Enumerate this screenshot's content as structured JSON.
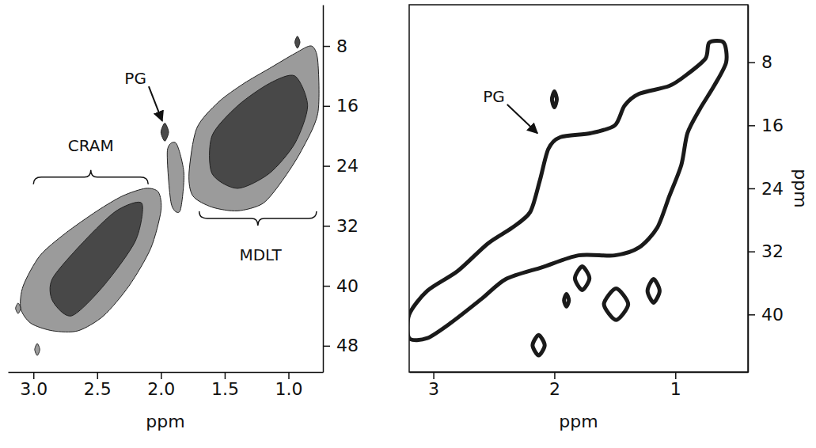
{
  "chart_data": [
    {
      "type": "contourf",
      "x_label": "ppm",
      "xlim": [
        3.2,
        0.73
      ],
      "ylim": [
        2.5,
        51.5
      ],
      "xticks": [
        {
          "value": 3,
          "label": "3.0"
        },
        {
          "value": 2.5,
          "label": "2.5"
        },
        {
          "value": 2,
          "label": "2.0"
        },
        {
          "value": 1.5,
          "label": "1.5"
        },
        {
          "value": 1,
          "label": "1.0"
        }
      ],
      "yticks": [
        8,
        16,
        24,
        32,
        40,
        48
      ],
      "series": [
        {
          "color": "#8a8a8a",
          "x": [
            3.08,
            2.95,
            2.75,
            2.5,
            2.3,
            2.12,
            2.02,
            2.0,
            2.08,
            2.25,
            2.45,
            2.65,
            2.85,
            3.02,
            3.1
          ],
          "y": [
            40,
            36,
            33,
            30,
            28,
            27,
            27.5,
            30,
            35,
            40,
            44,
            46,
            46,
            45,
            43
          ]
        },
        {
          "color": "#3a3a3a",
          "x": [
            2.85,
            2.6,
            2.35,
            2.15,
            2.2,
            2.45,
            2.7,
            2.85
          ],
          "y": [
            39,
            34,
            30,
            29,
            34,
            40,
            44,
            42
          ]
        },
        {
          "color": "#8a8a8a",
          "x": [
            1.78,
            1.72,
            1.55,
            1.35,
            1.15,
            0.95,
            0.82,
            0.77,
            0.77,
            0.9,
            1.05,
            1.2,
            1.4,
            1.6,
            1.75
          ],
          "y": [
            25,
            19,
            15.5,
            13,
            11,
            9,
            8,
            10,
            17,
            22,
            26,
            29,
            30,
            29.5,
            28
          ]
        },
        {
          "color": "#3a3a3a",
          "x": [
            1.6,
            1.4,
            1.15,
            0.95,
            0.85,
            0.95,
            1.15,
            1.4,
            1.6
          ],
          "y": [
            20,
            16,
            13,
            12,
            16,
            21,
            25,
            27,
            25
          ]
        },
        {
          "color": "#8a8a8a",
          "x": [
            1.95,
            1.88,
            1.82,
            1.85,
            1.92
          ],
          "y": [
            22,
            21,
            25,
            30,
            29
          ]
        },
        {
          "color": "#2a2a2a",
          "x": [
            2.0,
            1.97,
            1.94,
            1.97
          ],
          "y": [
            19.5,
            18.3,
            19.5,
            20.7
          ]
        },
        {
          "color": "#8a8a8a",
          "x": [
            3.14,
            3.12,
            3.1,
            3.12
          ],
          "y": [
            43,
            42.3,
            43,
            43.7
          ]
        },
        {
          "color": "#8a8a8a",
          "x": [
            2.99,
            2.97,
            2.95,
            2.97
          ],
          "y": [
            48.5,
            47.7,
            48.5,
            49.3
          ]
        },
        {
          "color": "#2a2a2a",
          "x": [
            0.95,
            0.93,
            0.91,
            0.93
          ],
          "y": [
            7.5,
            6.7,
            7.5,
            8.3
          ]
        }
      ],
      "annotations": [
        {
          "text": "CRAM",
          "x": 2.55,
          "y": 21.5,
          "bracket": [
            3.0,
            2.1
          ],
          "bracket_y": 25.5
        },
        {
          "text": "MDLT",
          "x": 1.22,
          "y": 36,
          "bracket": [
            1.7,
            0.78
          ],
          "bracket_y": 31
        },
        {
          "text": "PG",
          "x": 2.2,
          "y": 12.5,
          "arrow_to": [
            1.99,
            18
          ]
        }
      ]
    },
    {
      "type": "contour",
      "x_label": "ppm",
      "y_label": "ppm",
      "xlim": [
        3.2,
        0.4
      ],
      "ylim": [
        0.7,
        47.3
      ],
      "xticks": [
        3,
        2,
        1
      ],
      "yticks": [
        8,
        16,
        24,
        32,
        40
      ],
      "series": [
        {
          "color": "#1a1a1a",
          "x": [
            3.2,
            3.05,
            2.8,
            2.55,
            2.35,
            2.2,
            2.12,
            2.05,
            1.95,
            1.7,
            1.5,
            1.42,
            1.3,
            1.05,
            0.9,
            0.75,
            0.72,
            0.6,
            0.58,
            0.68,
            0.8,
            0.9,
            0.95,
            1.05,
            1.15,
            1.3,
            1.5,
            1.8,
            2.1,
            2.4,
            2.6,
            2.85,
            3.05,
            3.2
          ],
          "y": [
            40,
            37,
            34.5,
            31,
            29,
            27,
            23,
            19,
            17.5,
            17,
            16,
            13.5,
            12,
            11,
            9.5,
            7.5,
            5.5,
            5.5,
            8,
            11,
            14,
            17,
            21,
            25,
            29,
            31.5,
            32.5,
            32.5,
            34,
            35.5,
            38,
            41,
            43,
            43
          ]
        },
        {
          "color": "#1a1a1a",
          "x": [
            1.83,
            1.77,
            1.71,
            1.77
          ],
          "y": [
            35.4,
            33.9,
            35.4,
            36.9
          ]
        },
        {
          "color": "#1a1a1a",
          "x": [
            1.59,
            1.49,
            1.39,
            1.49
          ],
          "y": [
            38.7,
            36.7,
            38.7,
            40.7
          ]
        },
        {
          "color": "#1a1a1a",
          "x": [
            1.23,
            1.18,
            1.13,
            1.18
          ],
          "y": [
            37,
            35.5,
            37,
            38.5
          ]
        },
        {
          "color": "#1a1a1a",
          "x": [
            1.92,
            1.9,
            1.88,
            1.9
          ],
          "y": [
            38.2,
            37.4,
            38.2,
            39
          ]
        },
        {
          "color": "#1a1a1a",
          "x": [
            2.18,
            2.13,
            2.08,
            2.13
          ],
          "y": [
            43.9,
            42.6,
            43.9,
            45.2
          ]
        },
        {
          "color": "#1a1a1a",
          "x": [
            2.02,
            2.0,
            1.98,
            2.0
          ],
          "y": [
            12.7,
            11.7,
            12.7,
            13.7
          ]
        }
      ],
      "annotations": [
        {
          "text": "PG",
          "x": 2.5,
          "y": 12.5,
          "arrow_to": [
            2.14,
            17
          ]
        }
      ]
    }
  ]
}
